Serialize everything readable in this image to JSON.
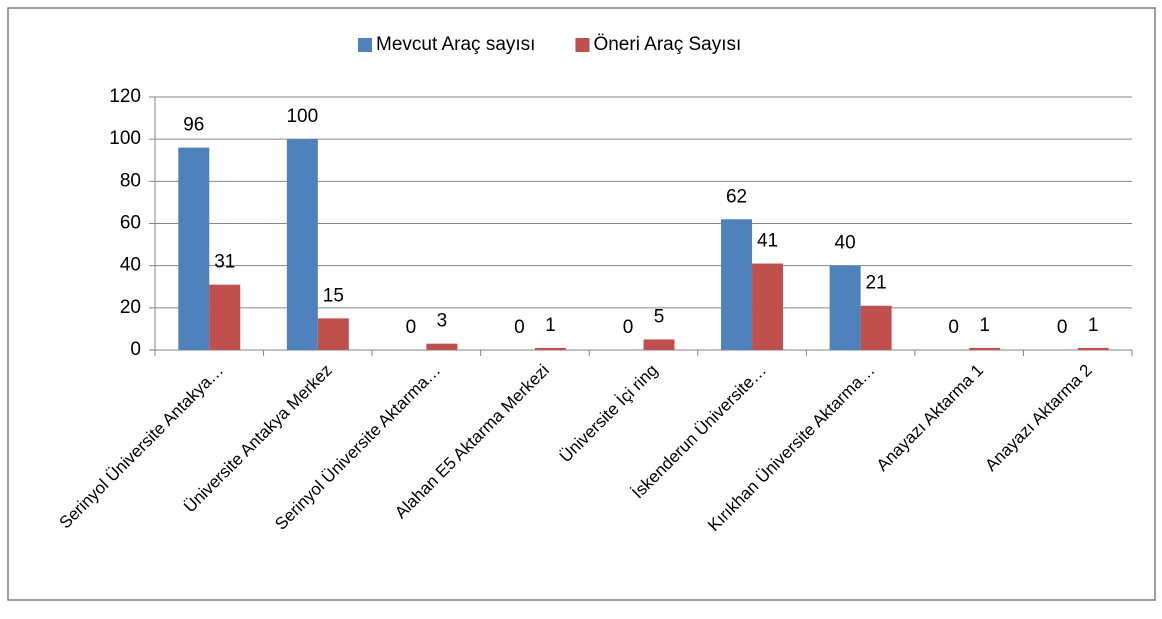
{
  "chart_data": {
    "type": "bar",
    "categories": [
      "Serinyol Üniversite Antakya…",
      "Üniversite Antakya Merkez",
      "Serinyol Üniversite Aktarma…",
      "Alahan E5 Aktarma Merkezi",
      "Üniversite İçi ring",
      "İskenderun Üniversite…",
      "Kırıkhan Üniversite Aktarma…",
      "Anayazı Aktarma 1",
      "Anayazı Aktarma 2"
    ],
    "series": [
      {
        "name": "Mevcut Araç sayısı",
        "color": "#4f81bd",
        "values": [
          96,
          100,
          0,
          0,
          0,
          62,
          40,
          0,
          0
        ]
      },
      {
        "name": "Öneri Araç Sayısı",
        "color": "#c0504d",
        "values": [
          31,
          15,
          3,
          1,
          5,
          41,
          21,
          1,
          1
        ]
      }
    ],
    "ylim": [
      0,
      120
    ],
    "yticks": [
      0,
      20,
      40,
      60,
      80,
      100,
      120
    ],
    "grid": true,
    "legend": "top"
  }
}
